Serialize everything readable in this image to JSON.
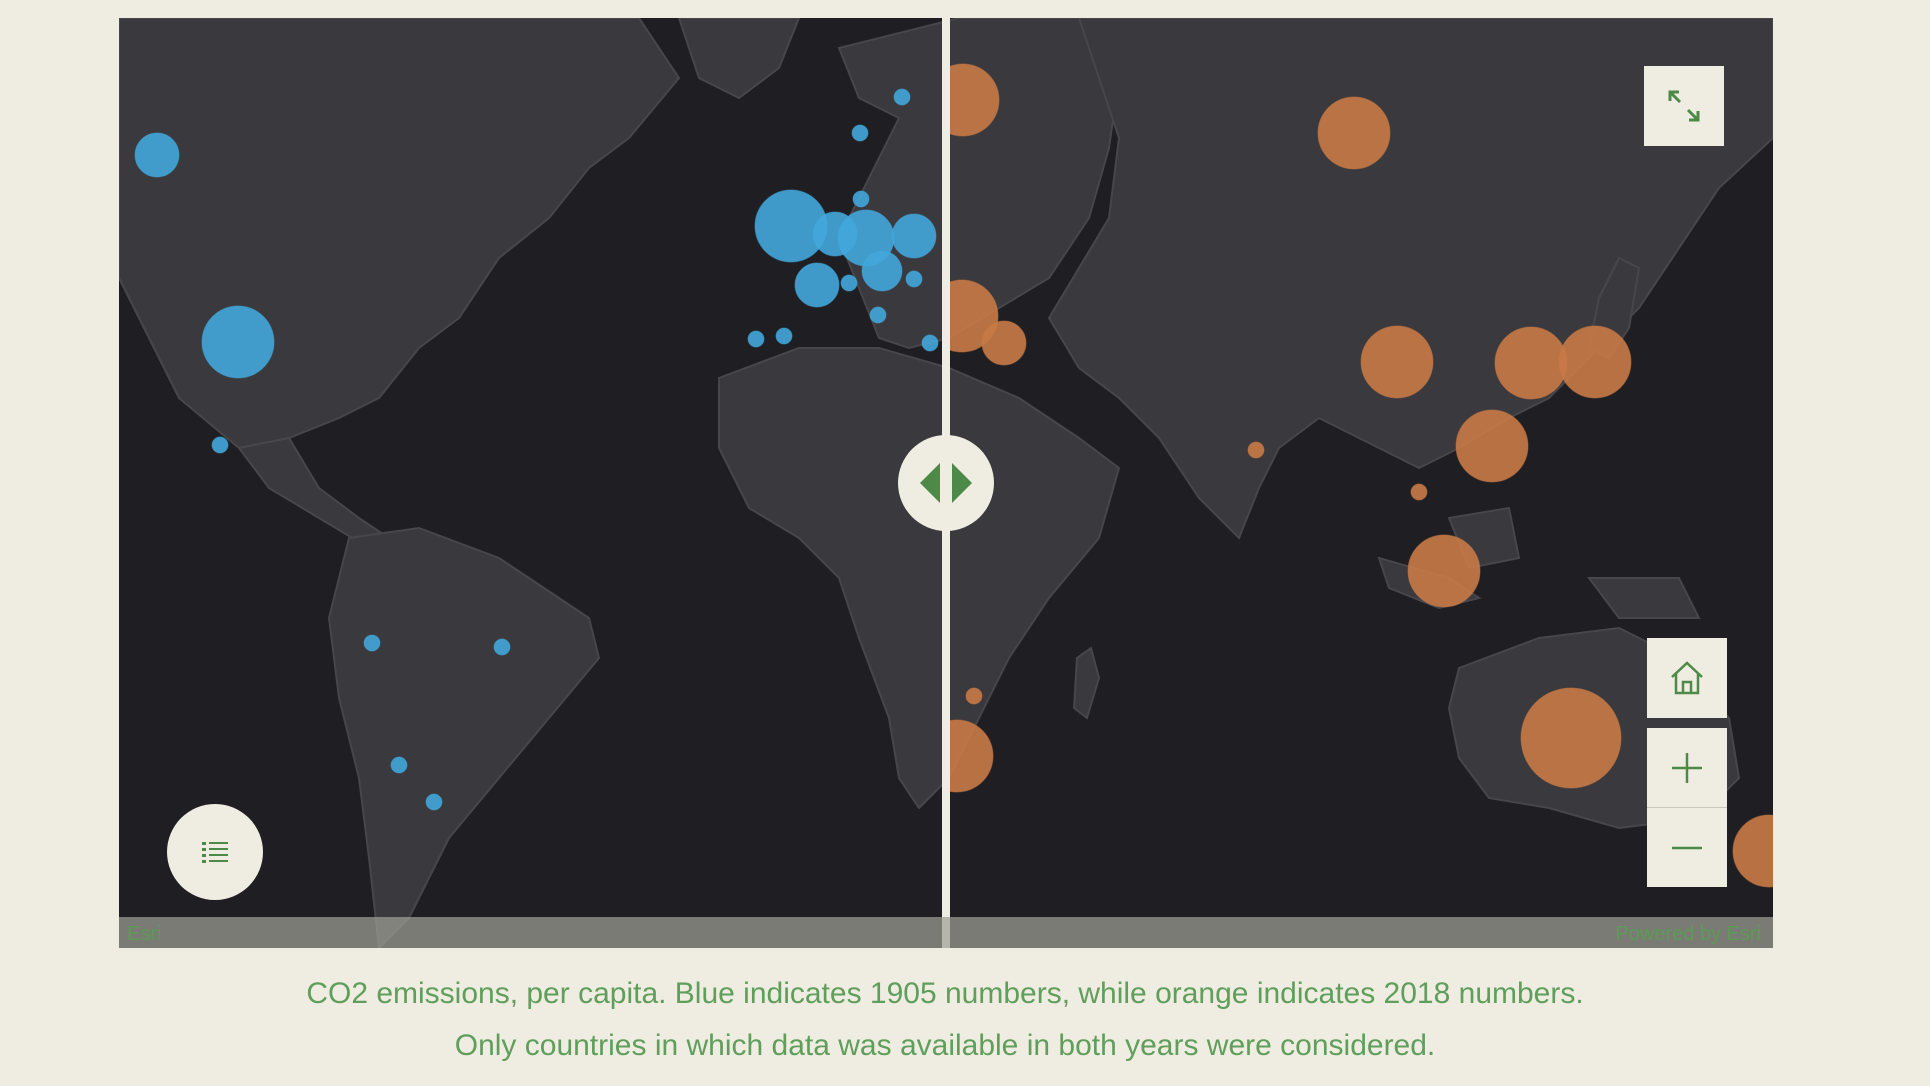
{
  "map": {
    "attribution_left": "Esri",
    "attribution_right": "Powered by Esri",
    "colors": {
      "ocean": "#1f1e22",
      "land": "#3a393d",
      "year_1905": "#42a7dc",
      "year_2018": "#c87a46",
      "ui_green": "#4e8a47",
      "ui_background": "#efece1"
    },
    "controls": {
      "expand": "expand-icon",
      "home": "home-icon",
      "zoom_in": "plus-icon",
      "zoom_out": "minus-icon",
      "legend": "legend-list-icon",
      "swipe_handle": "swipe-arrows-icon"
    }
  },
  "caption": {
    "line1": "CO2 emissions, per capita. Blue indicates 1905 numbers, while orange indicates 2018 numbers.",
    "line2": "Only countries in which data was available in both years were considered."
  }
}
